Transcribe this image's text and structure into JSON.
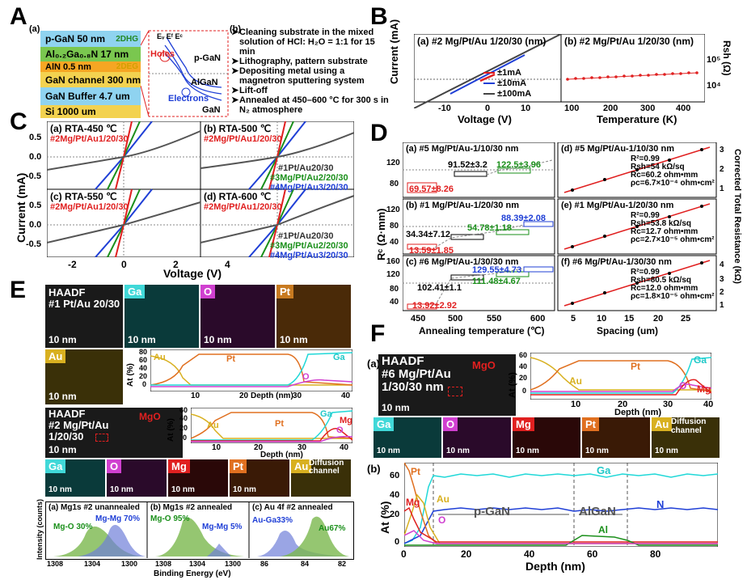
{
  "panel_letters": [
    "A",
    "B",
    "C",
    "D",
    "E",
    "F"
  ],
  "panelA": {
    "sub_a": "(a)",
    "sub_b": "(b)",
    "layers": [
      {
        "text": "p-GaN 50 nm",
        "extra": "2DHG",
        "color": "#8fd3f0"
      },
      {
        "text": "Al₀.₂Ga₀.₈N 17 nm",
        "extra": "",
        "color": "#7ac74f"
      },
      {
        "text": "AlN 0.5 nm",
        "extra": "2DEG",
        "color": "#f6a623"
      },
      {
        "text": "GaN channel 300 nm",
        "extra": "",
        "color": "#f3d250"
      },
      {
        "text": "GaN Buffer 4.7 um",
        "extra": "",
        "color": "#8fd3f0"
      },
      {
        "text": "Si 1000 um",
        "extra": "",
        "color": "#f3d250"
      }
    ],
    "band_labels": [
      "Eᵥ Eᶠ Eᶜ",
      "Holes",
      "p-GaN",
      "AlGaN",
      "Electrons",
      "GaN"
    ],
    "steps": [
      "Cleaning substrate in the mixed solution of HCl: H₂O = 1:1 for 15 min",
      "Lithography, pattern substrate",
      "Depositing metal using a magnetron sputtering system",
      "Lift-off",
      "Annealed at 450–600 °C for 300 s in N₂ atmosphere"
    ]
  },
  "panelB": {
    "ylabel": "Current (mA)",
    "xlabel_left": "Voltage (V)",
    "xlabel_right": "Temperature (K)",
    "ylabel_right": "Rsh (Ω)",
    "left_title": "(a) #2 Mg/Pt/Au 1/20/30 (nm)",
    "right_title": "(b) #2 Mg/Pt/Au 1/20/30 (nm)",
    "left_ticks": [
      "-10",
      "0",
      "10"
    ],
    "right_ticks": [
      "100",
      "200",
      "300",
      "400"
    ],
    "right_yticks": [
      "10⁵",
      "10⁴"
    ],
    "legend": [
      {
        "label": "±1mA",
        "color": "#e02020"
      },
      {
        "label": "±10mA",
        "color": "#1f3fd6"
      },
      {
        "label": "±100mA",
        "color": "#444444"
      }
    ]
  },
  "panelC": {
    "ylabel": "Current (mA)",
    "xlabel": "Voltage (V)",
    "xticks": [
      "-2",
      "0",
      "2",
      "4"
    ],
    "yticks": [
      "0.5",
      "0.0",
      "-0.5"
    ],
    "subplots": [
      {
        "title": "(a) RTA-450 ℃"
      },
      {
        "title": "(b) RTA-500 ℃"
      },
      {
        "title": "(c) RTA-550 ℃"
      },
      {
        "title": "(d) RTA-600 ℃"
      }
    ],
    "labels": [
      {
        "text": "#2Mg/Pt/Au1/20/30",
        "color": "#e02020"
      },
      {
        "text": "#1Pt/Au20/30",
        "color": "#333333"
      },
      {
        "text": "#3Mg/Pt/Au2/20/30",
        "color": "#1a8f1a"
      },
      {
        "text": "#4Mg/Pt/Au3/20/30",
        "color": "#1f3fd6"
      }
    ]
  },
  "panelD": {
    "ylabel_left": "Rᶜ (Ω·mm)",
    "ylabel_right": "Corrected Total Resistance (kΩ)",
    "xlabel_left": "Annealing temperature (℃)",
    "xlabel_right": "Spacing (um)",
    "xticks_left": [
      "450",
      "500",
      "550",
      "600"
    ],
    "xticks_right": [
      "5",
      "10",
      "15",
      "20",
      "25"
    ],
    "left": [
      {
        "title": "(a) #5 Mg/Pt/Au-1/10/30 nm",
        "yticks": [
          "120",
          "80"
        ],
        "values": [
          {
            "t": "69.57±8.26",
            "c": "#e02020"
          },
          {
            "t": "91.52±3.2",
            "c": "#000000"
          },
          {
            "t": "122.5±3.96",
            "c": "#1a8f1a"
          }
        ]
      },
      {
        "title": "(b) #1 Mg/Pt/Au-1/20/30 nm",
        "yticks": [
          "120",
          "80",
          "40"
        ],
        "values": [
          {
            "t": "13.59±1.85",
            "c": "#e02020"
          },
          {
            "t": "34.34±7.12",
            "c": "#000000"
          },
          {
            "t": "54.78±1.18",
            "c": "#1a8f1a"
          },
          {
            "t": "88.39±2.08",
            "c": "#1f3fd6"
          }
        ]
      },
      {
        "title": "(c) #6 Mg/Pt/Au-1/30/30 nm",
        "yticks": [
          "160",
          "120",
          "80",
          "40"
        ],
        "values": [
          {
            "t": "13.92±2.92",
            "c": "#e02020"
          },
          {
            "t": "102.41±1.1",
            "c": "#000000"
          },
          {
            "t": "111.48±4.67",
            "c": "#1a8f1a"
          },
          {
            "t": "129.55±4.73",
            "c": "#1f3fd6"
          }
        ]
      }
    ],
    "right": [
      {
        "title": "(d) #5 Mg/Pt/Au-1/10/30 nm",
        "r2": "R²=0.99",
        "rsh": "Rsh=54 kΩ/sq",
        "rc": "Rc=60.2 ohm•mm",
        "rho": "ρc=6.7×10⁻⁴ ohm•cm²",
        "yticks": [
          "3",
          "2",
          "1"
        ]
      },
      {
        "title": "(e) #1 Mg/Pt/Au-1/20/30 nm",
        "r2": "R²=0.99",
        "rsh": "Rsh=53.8 kΩ/sq",
        "rc": "Rc=12.7 ohm•mm",
        "rho": "ρc=2.7×10⁻⁵ ohm•cm²",
        "yticks": [
          "3",
          "2",
          "1"
        ]
      },
      {
        "title": "(f) #6 Mg/Pt/Au-1/30/30 nm",
        "r2": "R²=0.99",
        "rsh": "Rsh=80.5 kΩ/sq",
        "rc": "Rc=12.0 ohm•mm",
        "rho": "ρc=1.8×10⁻⁵ ohm•cm²",
        "yticks": [
          "4",
          "3",
          "2",
          "1"
        ]
      }
    ]
  },
  "panelE": {
    "haadf1": "HAADF",
    "sample1": "#1 Pt/Au 20/30",
    "haadf2": "HAADF",
    "sample2a": "#2 Mg/Pt/Au",
    "sample2b": "1/20/30",
    "mgo": "MgO",
    "scale": "10 nm",
    "maps1": [
      {
        "tag": "Ga",
        "tagcolor": "#40d8d8",
        "bg": "#0a3a3a"
      },
      {
        "tag": "O",
        "tagcolor": "#d040d0",
        "bg": "#2a0a2a"
      },
      {
        "tag": "Pt",
        "tagcolor": "#c87a20",
        "bg": "#4a2a08"
      },
      {
        "tag": "Au",
        "tagcolor": "#d8b020",
        "bg": "#3a3008"
      }
    ],
    "maps2": [
      {
        "tag": "Ga",
        "tagcolor": "#40d8d8",
        "bg": "#0a3a3a"
      },
      {
        "tag": "O",
        "tagcolor": "#d040d0",
        "bg": "#2a0a2a"
      },
      {
        "tag": "Mg",
        "tagcolor": "#e02020",
        "bg": "#2a0808"
      },
      {
        "tag": "Pt",
        "tagcolor": "#e07020",
        "bg": "#3a1a06"
      },
      {
        "tag": "Au",
        "tagcolor": "#d8b020",
        "bg": "#3a3008"
      }
    ],
    "diffusion": "Diffusion channel",
    "line1": {
      "ylabel": "At (%)",
      "xlabel": "Depth (nm)",
      "yticks": [
        "80",
        "60",
        "40",
        "20",
        "0"
      ],
      "xticks": [
        "10",
        "20",
        "30",
        "40"
      ],
      "labels": [
        "Au",
        "Pt",
        "Ga",
        "O"
      ]
    },
    "line2": {
      "ylabel": "At (%)",
      "xlabel": "Depth (nm)",
      "yticks": [
        "60",
        "40",
        "20",
        "0"
      ],
      "xticks": [
        "10",
        "20",
        "30",
        "40"
      ],
      "labels": [
        "Au",
        "Pt",
        "Ga",
        "Mg",
        "O"
      ]
    },
    "xps": {
      "ylabel": "Intensity (counts)",
      "xlabel": "Binding Energy (eV)",
      "panels": [
        {
          "title": "(a) Mg1s #2 unannealed",
          "a": "Mg-O 30%",
          "b": "Mg-Mg 70%",
          "xticks": [
            "1308",
            "1304",
            "1300"
          ]
        },
        {
          "title": "(b) Mg1s #2 annealed",
          "a": "Mg-O 95%",
          "b": "Mg-Mg 5%",
          "xticks": [
            "1308",
            "1304",
            "1300"
          ]
        },
        {
          "title": "(c) Au 4f #2 annealed",
          "a": "Au-Ga33%",
          "b": "Au67%",
          "xticks": [
            "86",
            "84",
            "82"
          ]
        }
      ]
    }
  },
  "panelF": {
    "sub_a": "(a)",
    "haadf": "HAADF",
    "sample_a": "#6 Mg/Pt/Au",
    "sample_b": "1/30/30 nm",
    "mgo": "MgO",
    "scale": "10 nm",
    "maps": [
      {
        "tag": "Ga",
        "tagcolor": "#40d8d8",
        "bg": "#0a3a3a"
      },
      {
        "tag": "O",
        "tagcolor": "#d040d0",
        "bg": "#2a0a2a"
      },
      {
        "tag": "Mg",
        "tagcolor": "#e02020",
        "bg": "#2a0808"
      },
      {
        "tag": "Pt",
        "tagcolor": "#e07020",
        "bg": "#3a1a06"
      },
      {
        "tag": "Au",
        "tagcolor": "#d8b020",
        "bg": "#3a3008"
      }
    ],
    "diffusion": "Diffusion channel",
    "top": {
      "ylabel": "At (%)",
      "xlabel": "Depth (nm)",
      "yticks": [
        "60",
        "40",
        "20",
        "0"
      ],
      "xticks": [
        "10",
        "20",
        "30",
        "40"
      ],
      "labels": [
        "Au",
        "Pt",
        "Ga",
        "O",
        "Mg"
      ]
    },
    "bottom": {
      "sub": "(b)",
      "ylabel": "At (%)",
      "xlabel": "Depth (nm)",
      "yticks": [
        "60",
        "40",
        "20",
        "0"
      ],
      "xticks": [
        "0",
        "20",
        "40",
        "60",
        "80"
      ],
      "labels": [
        {
          "t": "Pt",
          "c": "#e07020"
        },
        {
          "t": "Au",
          "c": "#d8b020"
        },
        {
          "t": "Mg",
          "c": "#e02020"
        },
        {
          "t": "O",
          "c": "#d040d0"
        },
        {
          "t": "Ga",
          "c": "#20c8c8"
        },
        {
          "t": "Al",
          "c": "#1a8f1a"
        },
        {
          "t": "N",
          "c": "#1f3fd6"
        }
      ],
      "regions": [
        "p-GaN",
        "AlGaN"
      ]
    }
  }
}
